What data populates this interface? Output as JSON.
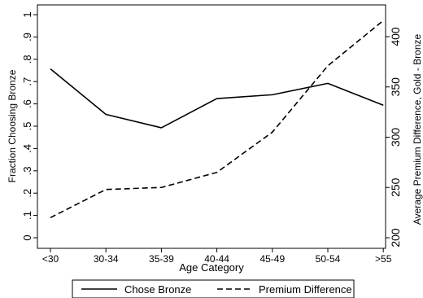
{
  "chart_data": {
    "type": "line",
    "x_label": "Age Category",
    "categories": [
      "<30",
      "30-34",
      "35-39",
      "40-44",
      "45-49",
      "50-54",
      ">55"
    ],
    "y_left": {
      "label": "Fraction Choosing Bronze",
      "range": [
        0,
        1
      ],
      "ticks": [
        "0",
        ".1",
        ".2",
        ".3",
        ".4",
        ".5",
        ".6",
        ".7",
        ".8",
        ".9",
        "1"
      ],
      "tick_values": [
        0,
        0.1,
        0.2,
        0.3,
        0.4,
        0.5,
        0.6,
        0.7,
        0.8,
        0.9,
        1.0
      ]
    },
    "y_right": {
      "label": "Average Premium Difference, Gold - Bronze",
      "range": [
        200,
        420
      ],
      "ticks": [
        "200",
        "250",
        "300",
        "350",
        "400"
      ],
      "tick_values": [
        200,
        250,
        300,
        350,
        400
      ]
    },
    "series": [
      {
        "name": "Chose Bronze",
        "axis": "left",
        "style": "solid",
        "values": [
          0.757,
          0.553,
          0.493,
          0.624,
          0.641,
          0.692,
          0.594
        ]
      },
      {
        "name": "Premium Difference",
        "axis": "right",
        "style": "dashed",
        "values": [
          220,
          248,
          250,
          265,
          305,
          371,
          416
        ]
      }
    ],
    "legend": {
      "position": "bottom",
      "entries": [
        "Chose Bronze",
        "Premium Difference"
      ]
    },
    "grid": false,
    "line_color": "#000000"
  }
}
